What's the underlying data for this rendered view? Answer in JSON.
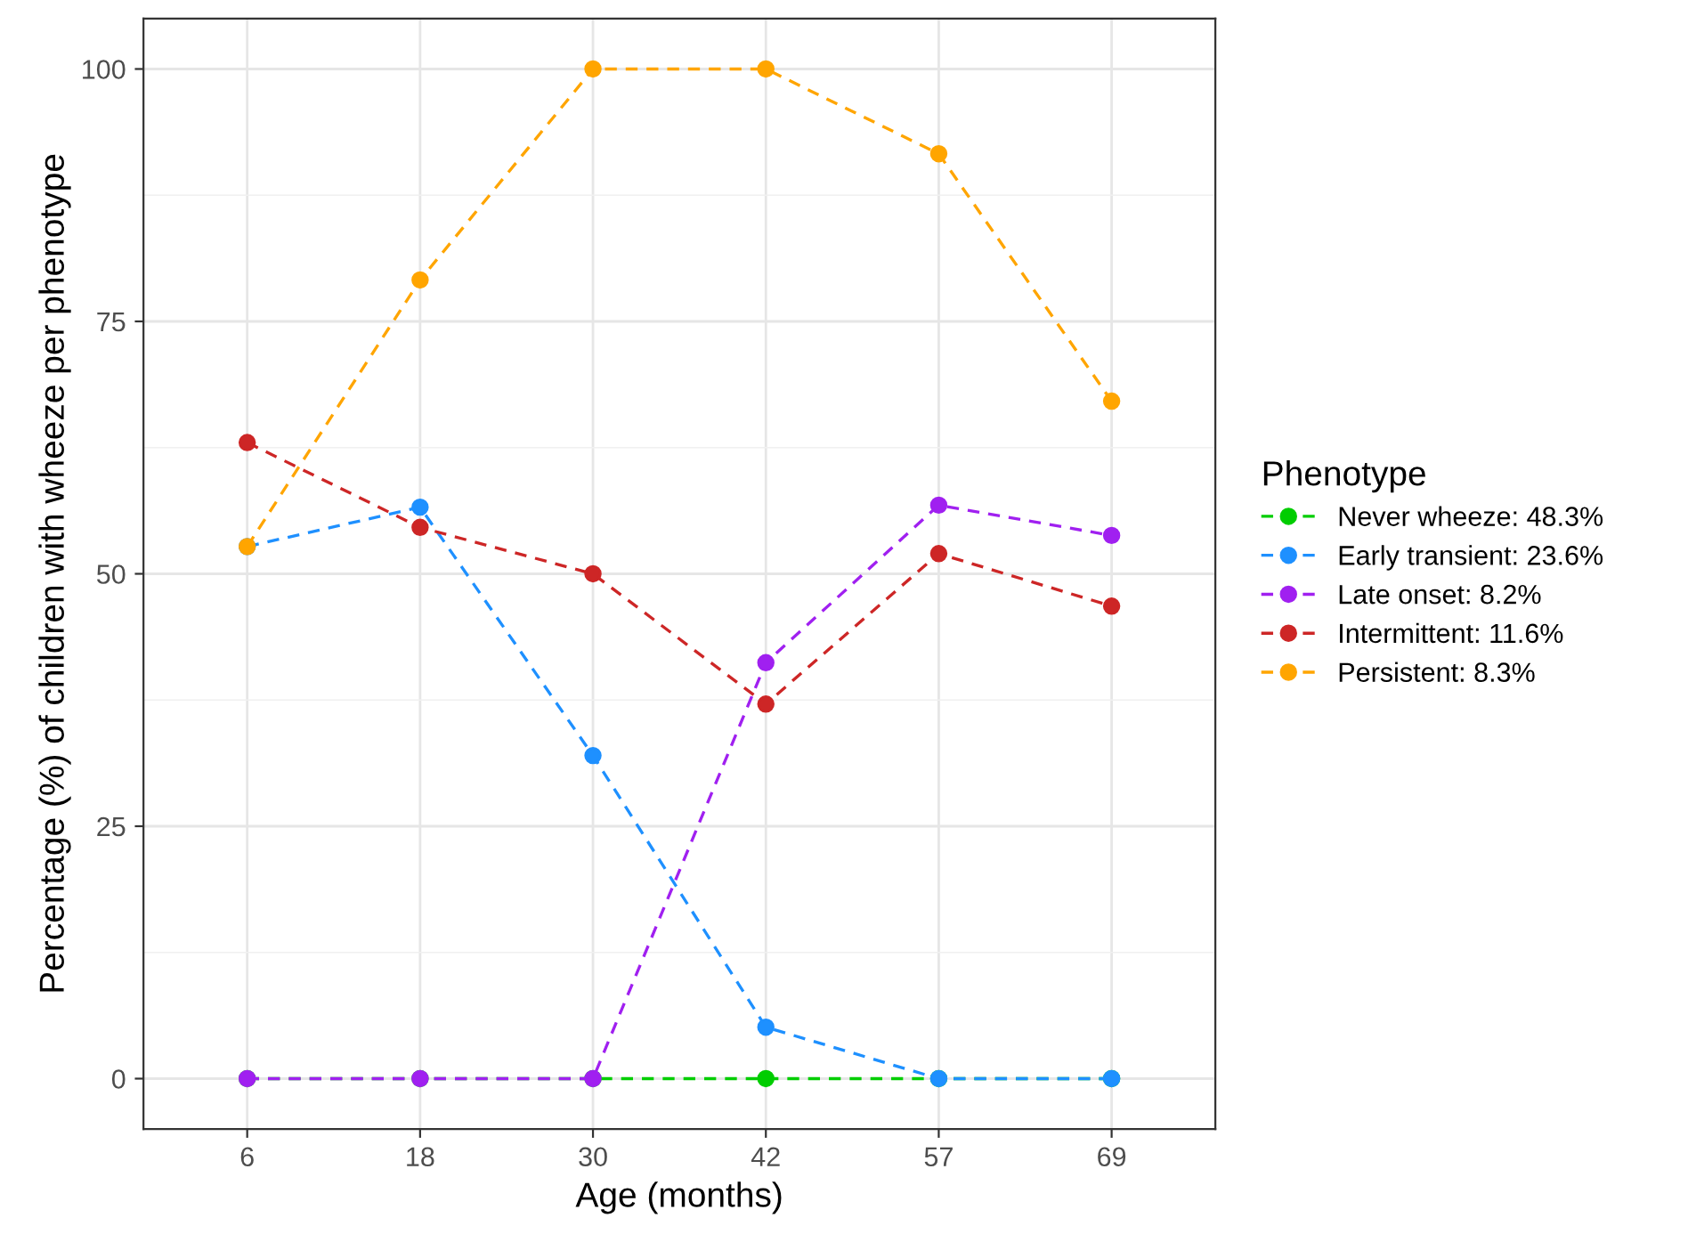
{
  "chart_data": {
    "type": "line",
    "xlabel": "Age (months)",
    "ylabel": "Percentage (%) of children with wheeze per phenotype",
    "legend_title": "Phenotype",
    "categories": [
      "6",
      "18",
      "30",
      "42",
      "57",
      "69"
    ],
    "series": [
      {
        "name": "Never wheeze: 48.3%",
        "color": "#00cd00",
        "values": [
          0,
          0,
          0,
          0,
          0,
          0
        ]
      },
      {
        "name": "Early transient: 23.6%",
        "color": "#1e90ff",
        "values": [
          52.7,
          56.6,
          32.0,
          5.1,
          0,
          0
        ]
      },
      {
        "name": "Late onset: 8.2%",
        "color": "#a020f0",
        "values": [
          0,
          0,
          0,
          41.2,
          56.8,
          53.8
        ]
      },
      {
        "name": "Intermittent: 11.6%",
        "color": "#cd2626",
        "values": [
          63.0,
          54.6,
          50.0,
          37.1,
          52.0,
          46.8
        ]
      },
      {
        "name": "Persistent: 8.3%",
        "color": "#ffa500",
        "values": [
          52.7,
          79.1,
          100,
          100,
          91.6,
          67.1
        ]
      }
    ],
    "ylim": [
      -5,
      105
    ],
    "yticks": [
      0,
      25,
      50,
      75,
      100
    ],
    "grid": true,
    "legend": "right",
    "marker": "circle",
    "line_style": "dashed"
  }
}
